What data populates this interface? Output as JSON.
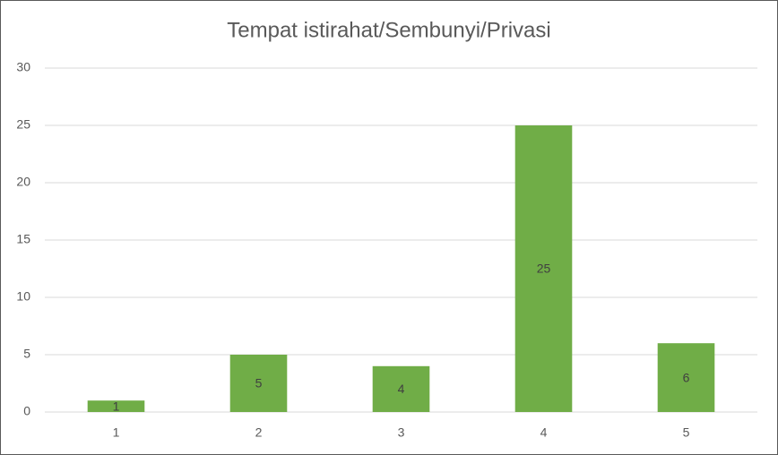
{
  "chart_data": {
    "type": "bar",
    "title": "Tempat istirahat/Sembunyi/Privasi",
    "categories": [
      "1",
      "2",
      "3",
      "4",
      "5"
    ],
    "values": [
      1,
      5,
      4,
      25,
      6
    ],
    "color": "#70ad47",
    "ylim": [
      0,
      30
    ],
    "yticks": [
      0,
      5,
      10,
      15,
      20,
      25,
      30
    ],
    "grid": true
  }
}
